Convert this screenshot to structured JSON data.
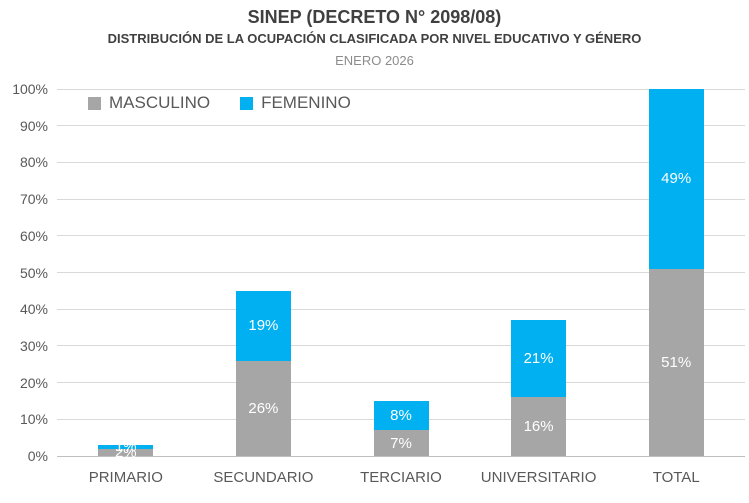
{
  "header": {
    "title": "SINEP (DECRETO N° 2098/08)",
    "subtitle": "DISTRIBUCIÓN DE LA OCUPACIÓN CLASIFICADA POR NIVEL EDUCATIVO Y GÉNERO",
    "period": "ENERO 2026"
  },
  "colors": {
    "masculino": "#A6A6A6",
    "femenino": "#00B0F0",
    "gridline": "#D9D9D9",
    "axis_line": "#BFBFBF",
    "axis_text": "#595959",
    "title_text": "#404040",
    "period_text": "#8C8C8C",
    "bar_label_text": "#FFFFFF"
  },
  "chart_data": {
    "type": "bar",
    "stacked": true,
    "title": "SINEP (DECRETO N° 2098/08)",
    "subtitle": "DISTRIBUCIÓN DE LA OCUPACIÓN CLASIFICADA POR NIVEL EDUCATIVO Y GÉNERO",
    "annotation": "ENERO 2026",
    "categories": [
      "PRIMARIO",
      "SECUNDARIO",
      "TERCIARIO",
      "UNIVERSITARIO",
      "TOTAL"
    ],
    "series": [
      {
        "name": "MASCULINO",
        "color": "#A6A6A6",
        "values": [
          2,
          26,
          7,
          16,
          51
        ]
      },
      {
        "name": "FEMENINO",
        "color": "#00B0F0",
        "values": [
          1,
          19,
          8,
          21,
          49
        ]
      }
    ],
    "data_labels": [
      [
        "2%",
        "26%",
        "7%",
        "16%",
        "51%"
      ],
      [
        "1%",
        "19%",
        "8%",
        "21%",
        "49%"
      ]
    ],
    "xlabel": "",
    "ylabel": "",
    "ylim": [
      0,
      100
    ],
    "ytick_step": 10,
    "ytick_labels": [
      "0%",
      "10%",
      "20%",
      "30%",
      "40%",
      "50%",
      "60%",
      "70%",
      "80%",
      "90%",
      "100%"
    ],
    "value_suffix": "%",
    "grid": true,
    "legend_position": "top-left-inside"
  }
}
